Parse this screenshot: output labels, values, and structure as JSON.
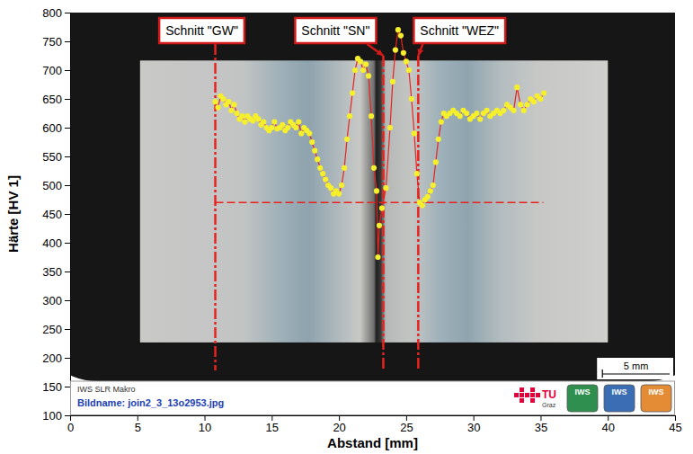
{
  "chart_data": {
    "type": "line",
    "marker": "circle",
    "line_style": "solid",
    "color": "#e8231d",
    "xlabel": "Abstand [mm]",
    "ylabel": "Härte [HV 1]",
    "xlim": [
      0,
      45
    ],
    "xticks": [
      0,
      5,
      10,
      15,
      20,
      25,
      30,
      35,
      40,
      45
    ],
    "ylim": [
      100,
      800
    ],
    "yticks": [
      100,
      150,
      200,
      250,
      300,
      350,
      400,
      450,
      500,
      550,
      600,
      650,
      700,
      750,
      800
    ],
    "x": [
      10.8,
      11.0,
      11.2,
      11.4,
      11.6,
      11.8,
      12.0,
      12.2,
      12.4,
      12.6,
      12.8,
      13.0,
      13.2,
      13.4,
      13.6,
      13.8,
      14.0,
      14.2,
      14.4,
      14.6,
      14.8,
      15.0,
      15.2,
      15.4,
      15.6,
      15.8,
      16.0,
      16.2,
      16.4,
      16.6,
      16.8,
      17.0,
      17.2,
      17.4,
      17.6,
      17.8,
      18.0,
      18.2,
      18.4,
      18.6,
      18.8,
      19.0,
      19.2,
      19.4,
      19.6,
      19.8,
      20.0,
      20.2,
      20.4,
      20.6,
      20.8,
      21.0,
      21.2,
      21.4,
      21.6,
      21.8,
      22.0,
      22.2,
      22.4,
      22.6,
      22.8,
      22.9,
      23.0,
      23.2,
      23.5,
      23.8,
      24.0,
      24.2,
      24.4,
      24.6,
      24.8,
      25.0,
      25.2,
      25.4,
      25.6,
      25.8,
      26.0,
      26.2,
      26.4,
      26.6,
      26.8,
      27.0,
      27.2,
      27.4,
      27.6,
      27.8,
      28.0,
      28.25,
      28.5,
      28.75,
      29.0,
      29.25,
      29.5,
      29.75,
      30.0,
      30.25,
      30.5,
      30.75,
      31.0,
      31.25,
      31.5,
      31.75,
      32.0,
      32.25,
      32.5,
      32.75,
      33.0,
      33.25,
      33.5,
      33.75,
      34.0,
      34.25,
      34.5,
      34.75,
      35.0,
      35.25
    ],
    "values": [
      645,
      635,
      655,
      650,
      640,
      645,
      630,
      640,
      625,
      615,
      620,
      610,
      620,
      615,
      612,
      620,
      615,
      605,
      610,
      600,
      595,
      600,
      610,
      598,
      600,
      605,
      595,
      600,
      610,
      605,
      600,
      610,
      590,
      600,
      595,
      590,
      575,
      560,
      545,
      530,
      520,
      510,
      500,
      495,
      485,
      490,
      485,
      500,
      530,
      580,
      620,
      660,
      700,
      720,
      715,
      700,
      710,
      690,
      620,
      530,
      490,
      375,
      430,
      460,
      495,
      600,
      680,
      735,
      770,
      760,
      730,
      715,
      700,
      650,
      590,
      520,
      470,
      465,
      475,
      480,
      490,
      500,
      540,
      580,
      610,
      625,
      620,
      625,
      630,
      625,
      620,
      630,
      625,
      615,
      620,
      625,
      615,
      625,
      630,
      620,
      625,
      630,
      625,
      630,
      640,
      635,
      630,
      670,
      640,
      630,
      640,
      650,
      645,
      655,
      650,
      660
    ],
    "cuts": [
      {
        "label": "Schnitt \"GW\"",
        "x": 10.8
      },
      {
        "label": "Schnitt \"SN\"",
        "x": 23.3
      },
      {
        "label": "Schnitt \"WEZ\"",
        "x": 25.9
      }
    ],
    "reference_line": {
      "y": 470,
      "x": [
        10.8,
        35.2
      ]
    },
    "scale_bar": {
      "label": "5 mm",
      "length": 5
    },
    "footer": {
      "title": "IWS SLR Makro",
      "filename": "Bildname: join2_3_13o2953.jpg",
      "logos": [
        "TU",
        "Graz",
        "IWS",
        "IWS",
        "IWS"
      ]
    }
  }
}
